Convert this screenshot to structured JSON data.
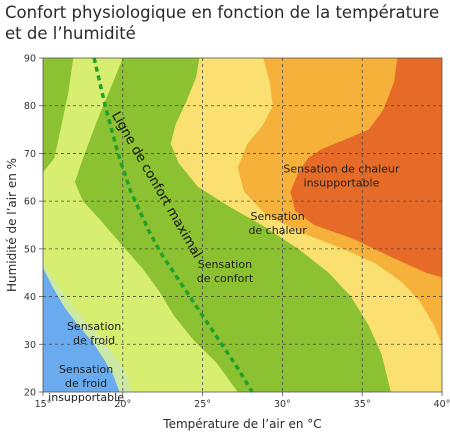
{
  "chart_data": {
    "type": "area",
    "title": "Confort physiologique en fonction de la température et de l’humidité",
    "xlabel": "Température de l’air en °C",
    "ylabel": "Humidité de l’air en %",
    "xlim": [
      15,
      40
    ],
    "ylim": [
      20,
      90
    ],
    "x_ticks": [
      15,
      20,
      25,
      30,
      35,
      40
    ],
    "x_tick_labels": [
      "15°",
      "20°",
      "25°",
      "30°",
      "35°",
      "40°"
    ],
    "y_ticks": [
      20,
      30,
      40,
      50,
      60,
      70,
      80,
      90
    ],
    "y_tick_labels": [
      "20",
      "30",
      "40",
      "50",
      "60",
      "70",
      "80",
      "90"
    ],
    "grid": true,
    "comfort_line": {
      "label": "Ligne de confort maximal",
      "points": [
        [
          18.2,
          90
        ],
        [
          18.9,
          80
        ],
        [
          19.7,
          70
        ],
        [
          20.5,
          62
        ],
        [
          21.6,
          54
        ],
        [
          22.4,
          49
        ],
        [
          23.4,
          44
        ],
        [
          24.6,
          38
        ],
        [
          26.0,
          31
        ],
        [
          27.2,
          25
        ],
        [
          28.1,
          20
        ]
      ]
    },
    "regions": [
      {
        "label": [
          "Sensation de chaleur",
          "insupportable"
        ],
        "x": 33.7,
        "y": 66,
        "color": "#e8732a"
      },
      {
        "label": [
          "Sensation",
          "de chaleur"
        ],
        "x": 29.7,
        "y": 56,
        "color": "#f5c040"
      },
      {
        "label": [
          "Sensation",
          "de confort"
        ],
        "x": 26.4,
        "y": 46,
        "color": "#8fc233"
      },
      {
        "label": [
          "Sensation",
          "de froid"
        ],
        "x": 18.2,
        "y": 33,
        "color": "#d6ef72"
      },
      {
        "label": [
          "Sensation",
          "de froid",
          "insupportable"
        ],
        "x": 17.7,
        "y": 24,
        "color": "#64a8ec"
      }
    ],
    "colors": {
      "extreme_hot": "#e66b28",
      "hot": "#f6b13b",
      "warm_transition": "#f9e070",
      "comfort": "#8cc132",
      "cool": "#d7ee70",
      "cold_transition": "#cde9a6",
      "extreme_cold": "#6aabef",
      "comfort_line": "#22a02c"
    }
  }
}
